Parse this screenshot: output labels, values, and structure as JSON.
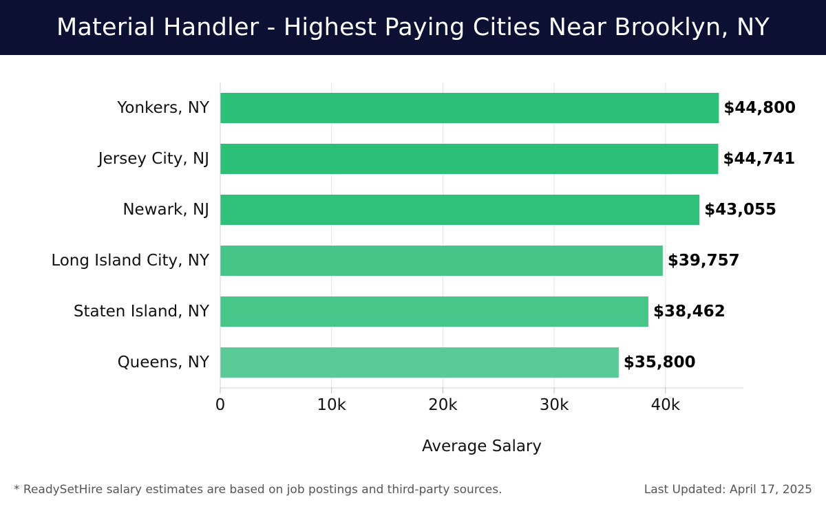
{
  "header": {
    "title": "Material Handler - Highest Paying Cities Near Brooklyn, NY"
  },
  "footer": {
    "note": "* ReadySetHire salary estimates are based on job postings and third-party sources.",
    "updated": "Last Updated: April 17, 2025"
  },
  "chart_data": {
    "type": "bar",
    "orientation": "horizontal",
    "title": "Material Handler - Highest Paying Cities Near Brooklyn, NY",
    "xlabel": "Average Salary",
    "ylabel": "",
    "xlim": [
      0,
      47000
    ],
    "x_ticks": [
      0,
      10000,
      20000,
      30000,
      40000
    ],
    "x_tick_labels": [
      "0",
      "10k",
      "20k",
      "30k",
      "40k"
    ],
    "grid": "vertical",
    "categories": [
      "Yonkers, NY",
      "Jersey City, NJ",
      "Newark, NJ",
      "Long Island City, NY",
      "Staten Island, NY",
      "Queens, NY"
    ],
    "values": [
      44800,
      44741,
      43055,
      39757,
      38462,
      35800
    ],
    "value_labels": [
      "$44,800",
      "$44,741",
      "$43,055",
      "$39,757",
      "$38,462",
      "$35,800"
    ],
    "colors": [
      "#2bbf77",
      "#2bbf77",
      "#2fc17a",
      "#45c588",
      "#47c68a",
      "#5acb96"
    ]
  }
}
